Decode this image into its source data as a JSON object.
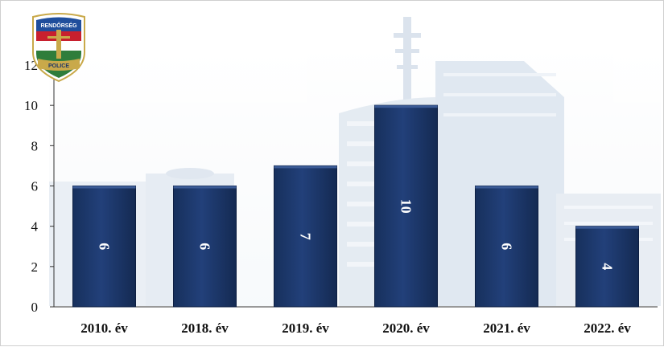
{
  "badge": {
    "top_text": "RENDŐRSÉG",
    "bottom_text": "POLICE",
    "colors": {
      "red": "#c8202e",
      "white": "#ffffff",
      "green": "#2f7d3b",
      "blue": "#1f4e9c",
      "gold": "#c9a94a"
    }
  },
  "colors": {
    "bar_fill": "#1e3768",
    "bar_edge": "#0e1f42",
    "axis": "#333333",
    "background_building": "#c5d3e3"
  },
  "chart_data": {
    "type": "bar",
    "title": "",
    "xlabel": "",
    "ylabel": "",
    "categories": [
      "2010. év",
      "2018. év",
      "2019. év",
      "2020. év",
      "2021. év",
      "2022. év"
    ],
    "values": [
      6,
      6,
      7,
      10,
      6,
      4
    ],
    "data_labels": [
      "6",
      "6",
      "7",
      "10",
      "6",
      "4"
    ],
    "ylim": [
      0,
      12
    ],
    "yticks": [
      "0",
      "2",
      "4",
      "6",
      "8",
      "10",
      "12"
    ],
    "grid": false,
    "legend": "none",
    "data_label_orientation": "rotated-90"
  }
}
